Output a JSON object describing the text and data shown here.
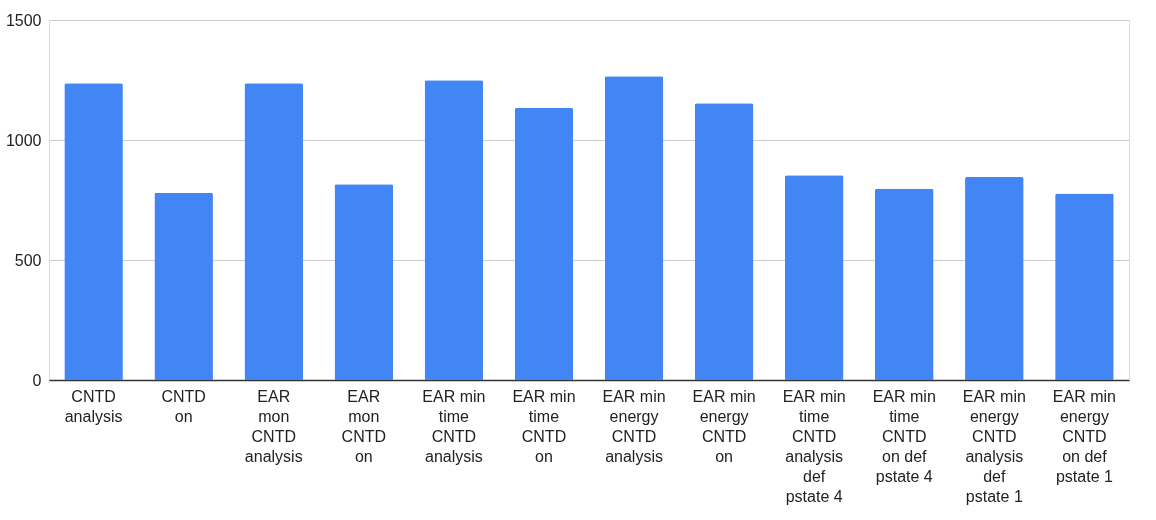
{
  "chart_data": {
    "type": "bar",
    "categories": [
      "CNTD analysis",
      "CNTD on",
      "EAR mon CNTD analysis",
      "EAR mon CNTD on",
      "EAR min time CNTD analysis",
      "EAR min time CNTD on",
      "EAR min energy CNTD analysis",
      "EAR min energy CNTD on",
      "EAR min time CNTD analysis def pstate 4",
      "EAR min time CNTD on def pstate 4",
      "EAR min energy CNTD analysis def pstate 1",
      "EAR min energy CNTD on def pstate 1"
    ],
    "values": [
      1236,
      780,
      1236,
      816,
      1249,
      1133,
      1266,
      1153,
      853,
      797,
      846,
      777
    ],
    "color": "#4285f4",
    "ylim": [
      0,
      1500
    ],
    "yticks": [
      0,
      500,
      {
        "value": 1000,
        "label": "1000"
      },
      {
        "value": 1500,
        "label": "1500"
      }
    ],
    "grid": "y"
  }
}
